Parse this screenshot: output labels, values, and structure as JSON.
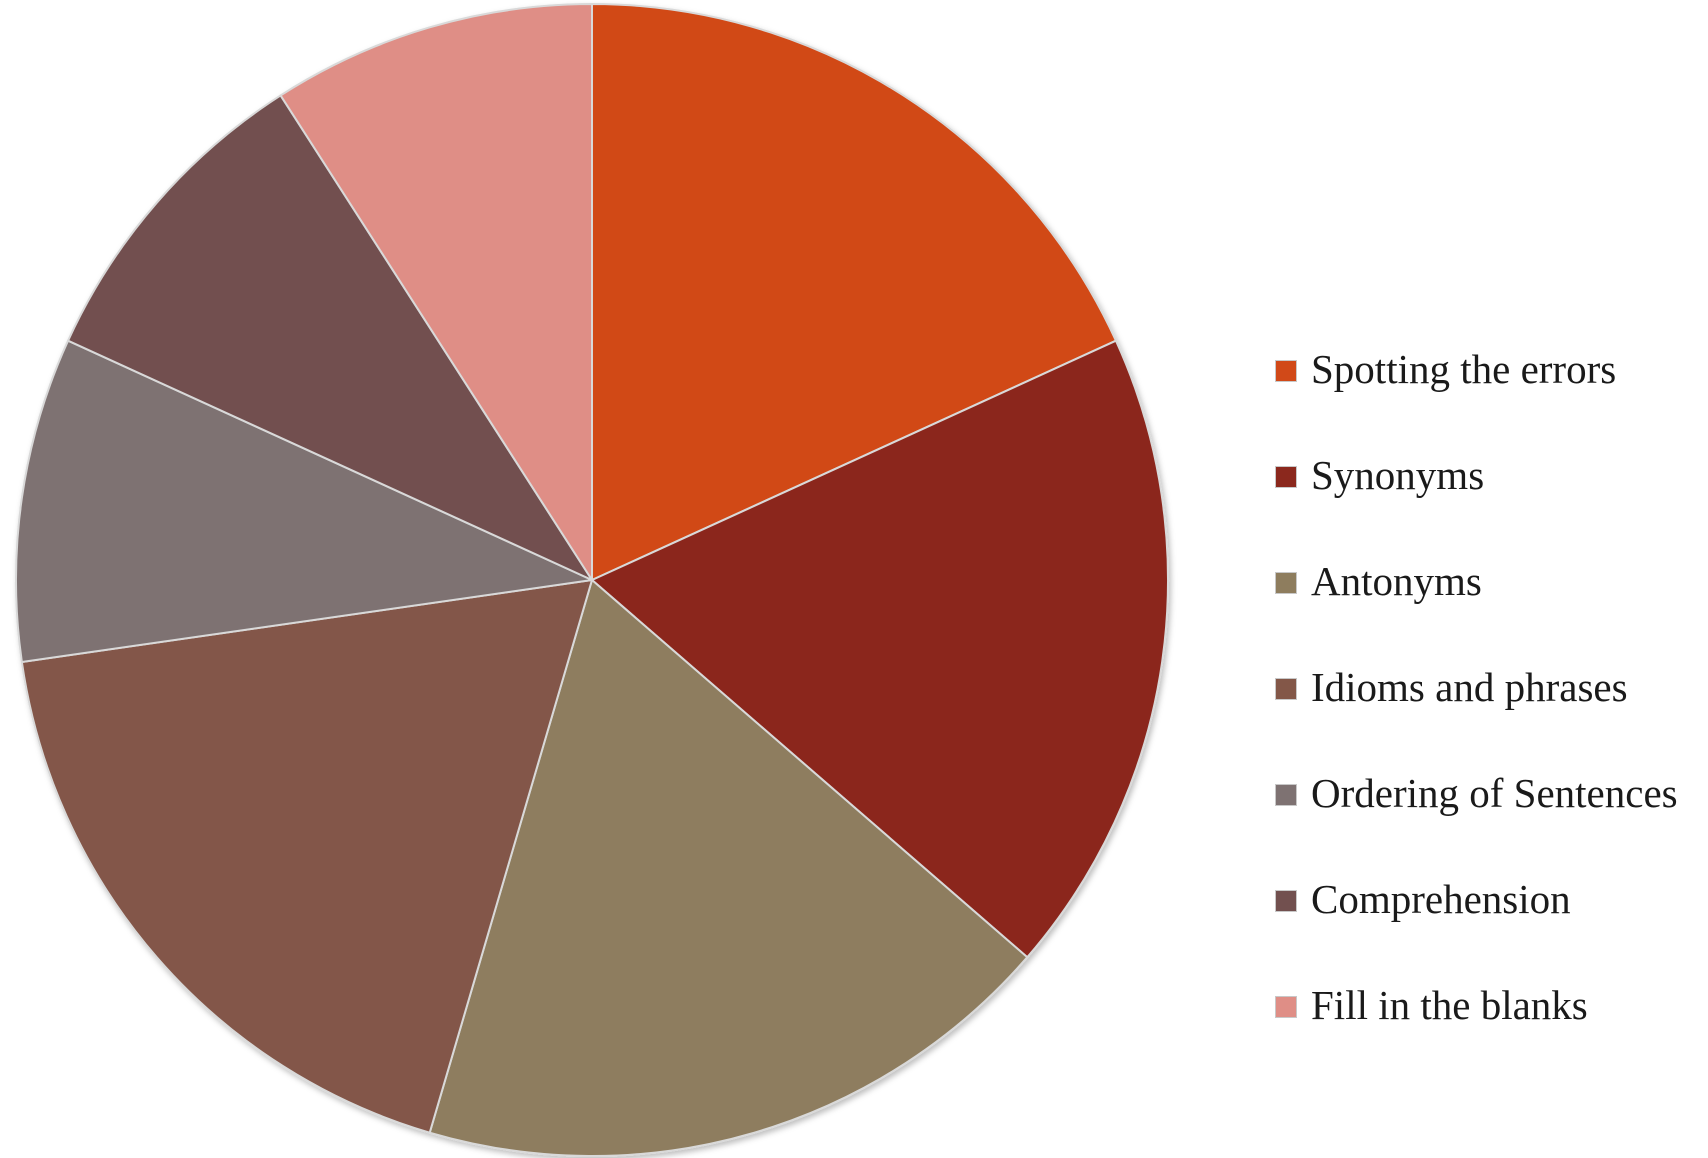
{
  "chart_data": {
    "type": "pie",
    "title": "",
    "legend_position": "right",
    "start_angle_deg": 0,
    "direction": "clockwise",
    "slices": [
      {
        "label": "Spotting the errors",
        "value": 18,
        "color": "#D14918"
      },
      {
        "label": "Synonyms",
        "value": 18,
        "color": "#8B281D"
      },
      {
        "label": "Antonyms",
        "value": 18,
        "color": "#8E7D5E"
      },
      {
        "label": "Idioms and phrases",
        "value": 18,
        "color": "#835748"
      },
      {
        "label": "Ordering of Sentences",
        "value": 9,
        "color": "#7E7272"
      },
      {
        "label": "Comprehension",
        "value": 9,
        "color": "#72504F"
      },
      {
        "label": "Fill in the blanks",
        "value": 9,
        "color": "#DF8E86"
      }
    ]
  }
}
